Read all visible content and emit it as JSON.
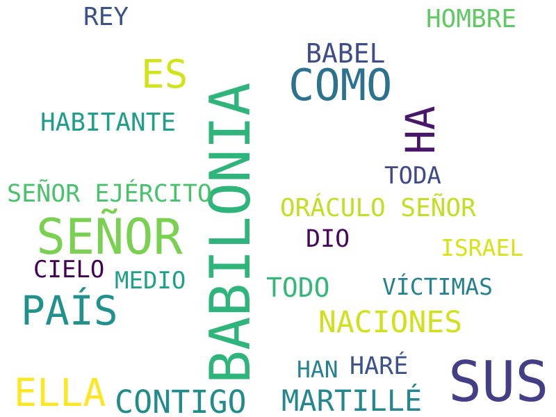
{
  "words": [
    {
      "text": "BABILONIA",
      "color": "#2fb47c"
    },
    {
      "text": "SEÑOR",
      "color": "#7ad151"
    },
    {
      "text": "SUS",
      "color": "#433e85"
    },
    {
      "text": "COMO",
      "color": "#2c728e"
    },
    {
      "text": "HA",
      "color": "#481769"
    },
    {
      "text": "PAÍS",
      "color": "#21918c"
    },
    {
      "text": "ES",
      "color": "#d2e21b"
    },
    {
      "text": "ELLA",
      "color": "#fde725"
    },
    {
      "text": "CONTIGO",
      "color": "#228c8d"
    },
    {
      "text": "MARTILLÉ",
      "color": "#24868e"
    },
    {
      "text": "NACIONES",
      "color": "#d0e11c"
    },
    {
      "text": "BABEL",
      "color": "#3e4c8a"
    },
    {
      "text": "HOMBRE",
      "color": "#5ec962"
    },
    {
      "text": "REY",
      "color": "#3b528b"
    },
    {
      "text": "HABITANTE",
      "color": "#1f9e89"
    },
    {
      "text": "SEÑOR EJÉRCITO",
      "color": "#4ac16d"
    },
    {
      "text": "ORÁCULO SEÑOR",
      "color": "#c2df23"
    },
    {
      "text": "TODA",
      "color": "#3f4889"
    },
    {
      "text": "DIO",
      "color": "#46085c"
    },
    {
      "text": "ISRAEL",
      "color": "#d8e219"
    },
    {
      "text": "CIELO",
      "color": "#440154"
    },
    {
      "text": "MEDIO",
      "color": "#1fa188"
    },
    {
      "text": "TODO",
      "color": "#35b779"
    },
    {
      "text": "VÍCTIMAS",
      "color": "#27808e"
    },
    {
      "text": "HAN",
      "color": "#26828e"
    },
    {
      "text": "HARÉ",
      "color": "#3b528b"
    }
  ]
}
